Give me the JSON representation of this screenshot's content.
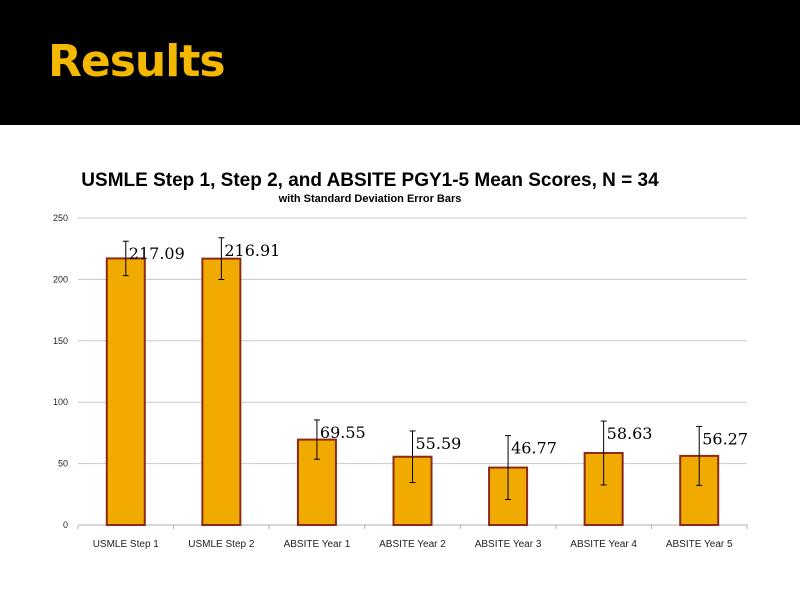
{
  "slide": {
    "title": "Results"
  },
  "chart_data": {
    "type": "bar",
    "title": "USMLE Step 1, Step 2, and ABSITE PGY1-5 Mean Scores, N = 34",
    "subtitle": "with Standard Deviation Error Bars",
    "categories": [
      "USMLE Step 1",
      "USMLE Step 2",
      "ABSITE Year 1",
      "ABSITE Year 2",
      "ABSITE Year 3",
      "ABSITE Year 4",
      "ABSITE Year 5"
    ],
    "values": [
      217.09,
      216.91,
      69.55,
      55.59,
      46.77,
      58.63,
      56.27
    ],
    "data_labels": [
      "217.09",
      "216.91",
      "69.55",
      "55.59",
      "46.77",
      "58.63",
      "56.27"
    ],
    "error": [
      14,
      17,
      16,
      21,
      26,
      26,
      24
    ],
    "ylim": [
      0,
      250
    ],
    "yticks": [
      0,
      50,
      100,
      150,
      200,
      250
    ],
    "grid": true,
    "colors": {
      "bar_fill": "#f0aa00",
      "bar_stroke": "#8b2a1a",
      "grid": "#c8c8c8"
    }
  }
}
